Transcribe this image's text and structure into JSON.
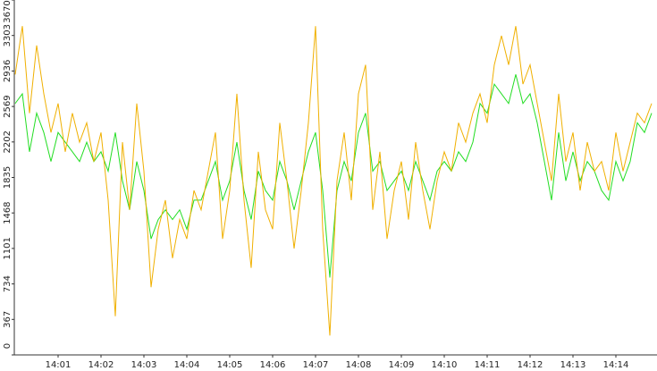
{
  "chart_data": {
    "type": "line",
    "categories": [
      null,
      null,
      null,
      null,
      null,
      null,
      "14:01",
      null,
      null,
      null,
      null,
      null,
      "14:02",
      null,
      null,
      null,
      null,
      null,
      "14:03",
      null,
      null,
      null,
      null,
      null,
      "14:04",
      null,
      null,
      null,
      null,
      null,
      "14:05",
      null,
      null,
      null,
      null,
      null,
      "14:06",
      null,
      null,
      null,
      null,
      null,
      "14:07",
      null,
      null,
      null,
      null,
      null,
      "14:08",
      null,
      null,
      null,
      null,
      null,
      "14:09",
      null,
      null,
      null,
      null,
      null,
      "14:10",
      null,
      null,
      null,
      null,
      null,
      "14:11",
      null,
      null,
      null,
      null,
      null,
      "14:12",
      null,
      null,
      null,
      null,
      null,
      "14:13",
      null,
      null,
      null,
      null,
      null,
      "14:14",
      null,
      null,
      null,
      null,
      null
    ],
    "series": [
      {
        "color": "#22dd22",
        "values": [
          2600,
          2700,
          2100,
          2500,
          2300,
          2000,
          2300,
          2200,
          2100,
          2000,
          2200,
          2000,
          2100,
          1900,
          2300,
          1800,
          1500,
          2000,
          1700,
          1200,
          1400,
          1500,
          1400,
          1500,
          1300,
          1600,
          1600,
          1800,
          2000,
          1600,
          1800,
          2200,
          1700,
          1400,
          1900,
          1700,
          1600,
          2000,
          1800,
          1500,
          1800,
          2100,
          2300,
          1700,
          800,
          1700,
          2000,
          1800,
          2300,
          2500,
          1900,
          2000,
          1700,
          1800,
          1900,
          1700,
          2000,
          1800,
          1600,
          1900,
          2000,
          1900,
          2100,
          2000,
          2200,
          2600,
          2500,
          2800,
          2700,
          2600,
          2900,
          2600,
          2700,
          2400,
          2000,
          1600,
          2300,
          1800,
          2100,
          1800,
          2000,
          1900,
          1700,
          1600,
          2000,
          1800,
          2000,
          2400,
          2300,
          2500
        ]
      },
      {
        "color": "#f0b000",
        "values": [
          2900,
          3400,
          2500,
          3200,
          2700,
          2300,
          2600,
          2100,
          2500,
          2200,
          2400,
          2000,
          2300,
          1600,
          400,
          2200,
          1500,
          2600,
          1900,
          700,
          1300,
          1600,
          1000,
          1400,
          1200,
          1700,
          1500,
          1900,
          2300,
          1200,
          1700,
          2700,
          1600,
          900,
          2100,
          1500,
          1300,
          2400,
          1800,
          1100,
          1700,
          2400,
          3400,
          1300,
          200,
          1800,
          2300,
          1600,
          2700,
          3000,
          1500,
          2100,
          1200,
          1700,
          2000,
          1400,
          2200,
          1700,
          1300,
          1800,
          2100,
          1900,
          2400,
          2200,
          2500,
          2700,
          2400,
          3000,
          3300,
          3000,
          3400,
          2800,
          3000,
          2600,
          2200,
          1800,
          2700,
          2000,
          2300,
          1700,
          2200,
          1900,
          2000,
          1700,
          2300,
          1900,
          2200,
          2500,
          2400,
          2600
        ]
      }
    ],
    "ylim": [
      0,
      3670
    ],
    "yticks": [
      0,
      367,
      734,
      1101,
      1468,
      1835,
      2202,
      2569,
      2936,
      3303,
      3670
    ]
  }
}
